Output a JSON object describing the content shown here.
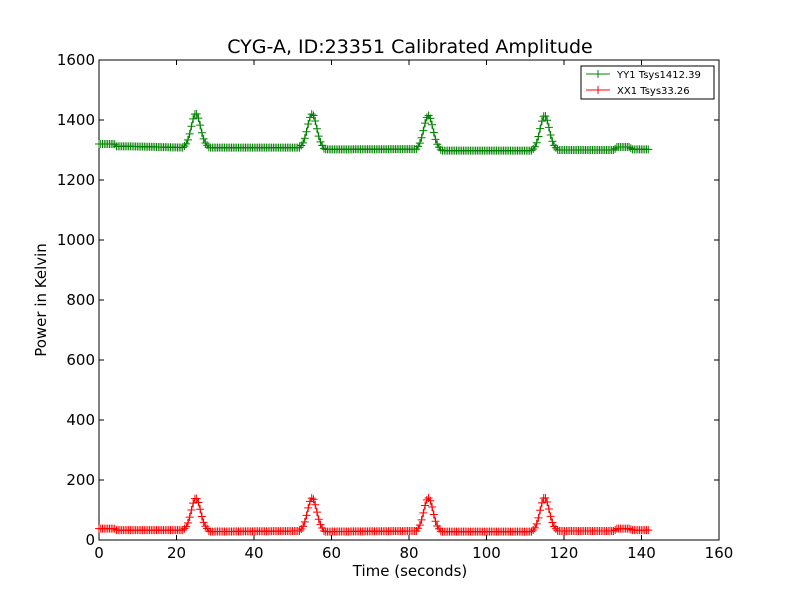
{
  "chart_data": {
    "type": "line",
    "title": "CYG-A, ID:23351 Calibrated Amplitude",
    "xlabel": "Time (seconds)",
    "ylabel": "Power in Kelvin",
    "xlim": [
      0,
      160
    ],
    "ylim": [
      0,
      1600
    ],
    "xticks": [
      0,
      20,
      40,
      60,
      80,
      100,
      120,
      140,
      160
    ],
    "yticks": [
      0,
      200,
      400,
      600,
      800,
      1000,
      1200,
      1400,
      1600
    ],
    "grid": false,
    "legend": "top-right",
    "marker": "+",
    "series": [
      {
        "name": "YY1 Tsys1412.39",
        "color": "#008000",
        "x": [
          0,
          4,
          4.5,
          8,
          8.5,
          22,
          25,
          28,
          28.5,
          52,
          55,
          58,
          58.5,
          82,
          85,
          88,
          88.5,
          112,
          115,
          118,
          118.5,
          133,
          133.5,
          137,
          137.5,
          142
        ],
        "y": [
          1320,
          1320,
          1312,
          1312,
          1312,
          1308,
          1422,
          1310,
          1308,
          1308,
          1420,
          1305,
          1302,
          1303,
          1415,
          1302,
          1298,
          1298,
          1415,
          1302,
          1300,
          1300,
          1310,
          1310,
          1302,
          1302
        ]
      },
      {
        "name": "XX1 Tsys33.26",
        "color": "#ff0000",
        "x": [
          0,
          4,
          4.5,
          8,
          8.5,
          22,
          25,
          28,
          28.5,
          52,
          55,
          58,
          58.5,
          82,
          85,
          88,
          88.5,
          112,
          115,
          118,
          118.5,
          133,
          133.5,
          137,
          137.5,
          142
        ],
        "y": [
          38,
          38,
          33,
          33,
          33,
          33,
          140,
          33,
          28,
          30,
          140,
          30,
          28,
          30,
          140,
          30,
          28,
          28,
          142,
          32,
          30,
          30,
          38,
          38,
          33,
          33
        ]
      }
    ]
  }
}
